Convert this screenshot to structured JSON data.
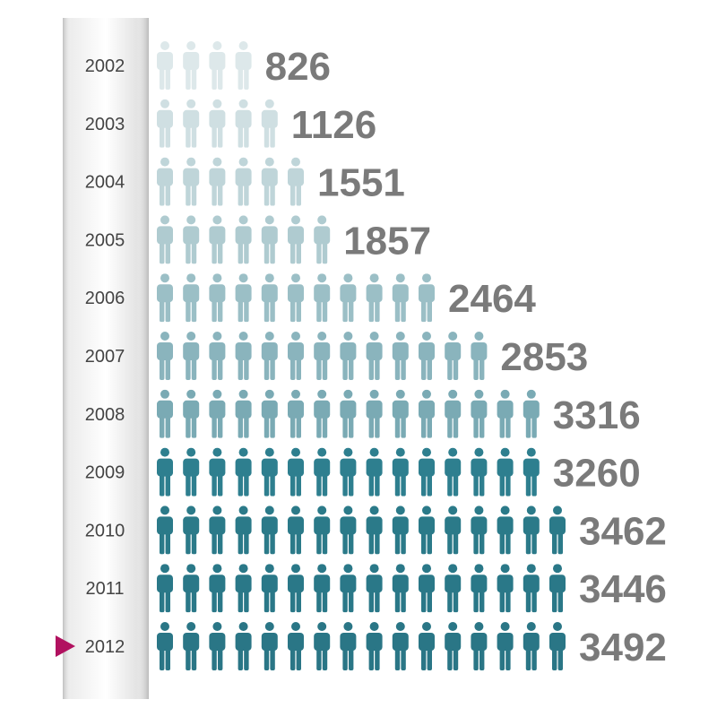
{
  "chart_data": {
    "type": "bar",
    "categories": [
      "2002",
      "2003",
      "2004",
      "2005",
      "2006",
      "2007",
      "2008",
      "2009",
      "2010",
      "2011",
      "2012"
    ],
    "values": [
      826,
      1126,
      1551,
      1857,
      2464,
      2853,
      3316,
      3260,
      3462,
      3446,
      3492
    ],
    "icon_counts": [
      4,
      5,
      6,
      7,
      11,
      13,
      15,
      15,
      16,
      16,
      16
    ],
    "value_labels": [
      "826",
      "1126",
      "1551",
      "1857",
      "2464",
      "2853",
      "3316",
      "3260",
      "3462",
      "3446",
      "3492"
    ],
    "marker_icon": "person-icon",
    "selected_category": "2012",
    "colors": {
      "icons": [
        "#dde8ea",
        "#cfdfe2",
        "#bfd5d9",
        "#afcbd0",
        "#9bbfc6",
        "#8ab4bd",
        "#7aaab4",
        "#2e7f8f",
        "#2b7a89",
        "#2a7888",
        "#2a7686"
      ],
      "value_label": "#7a7a7a",
      "year_label": "#444444",
      "marker": "#b1115f",
      "rail_light": "#f2f2f2",
      "rail_dark": "#cfcfcf"
    }
  }
}
